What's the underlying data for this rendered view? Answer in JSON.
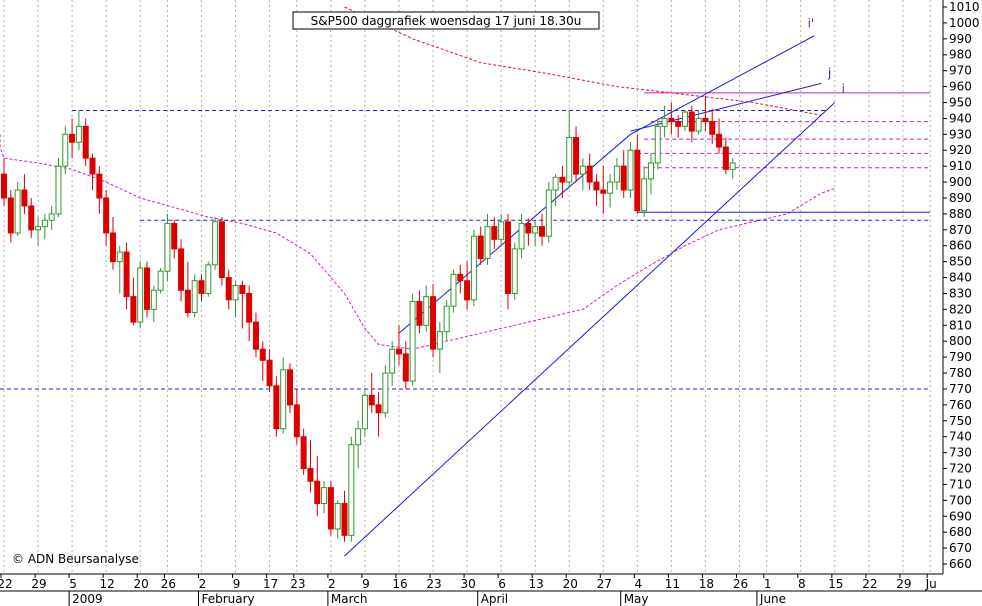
{
  "chart_data": {
    "type": "candlestick",
    "title": "S&P500 daggrafiek woensdag 17 juni 18.30u",
    "credit": "© ADN Beursanalyse",
    "ylim": [
      660,
      1010
    ],
    "yticks": [
      660,
      670,
      680,
      690,
      700,
      710,
      720,
      730,
      740,
      750,
      760,
      770,
      780,
      790,
      800,
      810,
      820,
      830,
      840,
      850,
      860,
      870,
      880,
      890,
      900,
      910,
      920,
      930,
      940,
      950,
      960,
      970,
      980,
      990,
      1000,
      1010
    ],
    "x_day_labels": [
      {
        "label": "22",
        "i": 0
      },
      {
        "label": "29",
        "i": 5
      },
      {
        "label": "5",
        "i": 10
      },
      {
        "label": "12",
        "i": 15
      },
      {
        "label": "20",
        "i": 20
      },
      {
        "label": "26",
        "i": 24
      },
      {
        "label": "2",
        "i": 29
      },
      {
        "label": "9",
        "i": 34
      },
      {
        "label": "17",
        "i": 39
      },
      {
        "label": "23",
        "i": 43
      },
      {
        "label": "2",
        "i": 48
      },
      {
        "label": "9",
        "i": 53
      },
      {
        "label": "16",
        "i": 58
      },
      {
        "label": "23",
        "i": 63
      },
      {
        "label": "30",
        "i": 68
      },
      {
        "label": "6",
        "i": 73
      },
      {
        "label": "13",
        "i": 78
      },
      {
        "label": "20",
        "i": 83
      },
      {
        "label": "27",
        "i": 88
      },
      {
        "label": "4",
        "i": 93
      },
      {
        "label": "11",
        "i": 98
      },
      {
        "label": "18",
        "i": 103
      },
      {
        "label": "26",
        "i": 108
      },
      {
        "label": "1",
        "i": 112
      },
      {
        "label": "8",
        "i": 117
      },
      {
        "label": "15",
        "i": 122
      },
      {
        "label": "22",
        "i": 127
      },
      {
        "label": "29",
        "i": 132
      },
      {
        "label": "Ju",
        "i": 136
      }
    ],
    "x_month_labels": [
      {
        "label": "2009",
        "i": 10
      },
      {
        "label": "February",
        "i": 29
      },
      {
        "label": "March",
        "i": 48
      },
      {
        "label": "April",
        "i": 70
      },
      {
        "label": "May",
        "i": 91
      },
      {
        "label": "June",
        "i": 111
      }
    ],
    "colors": {
      "up": "#2e9a2e",
      "down": "#dd0000",
      "grid": "#b0b0b0",
      "trend": "#1c1cd6",
      "hline": "#2323b8",
      "ma_long": "#cc2222",
      "ma_short": "#d01ad0",
      "resist": "#d01ad0",
      "ann_i": "#7a1aa6",
      "ann_j": "#1c1cd6"
    },
    "ohlc": [
      [
        905,
        915,
        885,
        890
      ],
      [
        890,
        895,
        862,
        868
      ],
      [
        868,
        900,
        866,
        895
      ],
      [
        895,
        905,
        880,
        885
      ],
      [
        885,
        890,
        865,
        870
      ],
      [
        870,
        878,
        860,
        872
      ],
      [
        872,
        880,
        864,
        876
      ],
      [
        876,
        885,
        870,
        880
      ],
      [
        880,
        915,
        878,
        910
      ],
      [
        910,
        935,
        905,
        930
      ],
      [
        930,
        940,
        915,
        925
      ],
      [
        925,
        945,
        920,
        935
      ],
      [
        935,
        940,
        910,
        915
      ],
      [
        915,
        918,
        895,
        905
      ],
      [
        905,
        910,
        880,
        890
      ],
      [
        890,
        895,
        860,
        868
      ],
      [
        868,
        878,
        845,
        850
      ],
      [
        850,
        860,
        830,
        856
      ],
      [
        856,
        862,
        820,
        828
      ],
      [
        828,
        840,
        810,
        812
      ],
      [
        812,
        850,
        808,
        846
      ],
      [
        846,
        850,
        815,
        820
      ],
      [
        820,
        835,
        812,
        832
      ],
      [
        832,
        846,
        830,
        844
      ],
      [
        844,
        880,
        838,
        874
      ],
      [
        874,
        876,
        852,
        858
      ],
      [
        858,
        864,
        825,
        832
      ],
      [
        832,
        850,
        815,
        818
      ],
      [
        818,
        842,
        815,
        838
      ],
      [
        838,
        842,
        825,
        830
      ],
      [
        830,
        850,
        828,
        848
      ],
      [
        848,
        878,
        845,
        875
      ],
      [
        875,
        878,
        835,
        840
      ],
      [
        840,
        845,
        820,
        826
      ],
      [
        826,
        838,
        815,
        835
      ],
      [
        835,
        838,
        808,
        830
      ],
      [
        830,
        835,
        800,
        812
      ],
      [
        812,
        818,
        790,
        795
      ],
      [
        795,
        800,
        775,
        788
      ],
      [
        788,
        795,
        768,
        772
      ],
      [
        772,
        778,
        740,
        745
      ],
      [
        745,
        790,
        742,
        782
      ],
      [
        782,
        786,
        755,
        760
      ],
      [
        760,
        770,
        735,
        740
      ],
      [
        740,
        745,
        716,
        720
      ],
      [
        720,
        738,
        705,
        712
      ],
      [
        712,
        728,
        690,
        698
      ],
      [
        698,
        712,
        692,
        708
      ],
      [
        708,
        712,
        678,
        682
      ],
      [
        682,
        700,
        676,
        698
      ],
      [
        698,
        706,
        674,
        678
      ],
      [
        678,
        740,
        674,
        735
      ],
      [
        735,
        750,
        720,
        745
      ],
      [
        745,
        770,
        740,
        766
      ],
      [
        766,
        780,
        755,
        760
      ],
      [
        760,
        768,
        740,
        755
      ],
      [
        755,
        785,
        752,
        780
      ],
      [
        780,
        800,
        772,
        795
      ],
      [
        795,
        810,
        785,
        792
      ],
      [
        792,
        800,
        770,
        775
      ],
      [
        775,
        830,
        772,
        825
      ],
      [
        825,
        832,
        805,
        810
      ],
      [
        810,
        835,
        806,
        828
      ],
      [
        828,
        836,
        790,
        795
      ],
      [
        795,
        812,
        780,
        806
      ],
      [
        806,
        826,
        800,
        822
      ],
      [
        822,
        845,
        818,
        842
      ],
      [
        842,
        848,
        830,
        838
      ],
      [
        838,
        850,
        820,
        826
      ],
      [
        826,
        870,
        822,
        866
      ],
      [
        866,
        872,
        848,
        852
      ],
      [
        852,
        880,
        848,
        872
      ],
      [
        872,
        878,
        858,
        864
      ],
      [
        864,
        880,
        860,
        875
      ],
      [
        875,
        880,
        820,
        830
      ],
      [
        830,
        862,
        826,
        858
      ],
      [
        858,
        880,
        852,
        874
      ],
      [
        874,
        877,
        860,
        868
      ],
      [
        868,
        876,
        860,
        872
      ],
      [
        872,
        880,
        860,
        866
      ],
      [
        866,
        900,
        862,
        895
      ],
      [
        895,
        905,
        885,
        903
      ],
      [
        903,
        910,
        890,
        900
      ],
      [
        900,
        945,
        896,
        928
      ],
      [
        928,
        935,
        900,
        905
      ],
      [
        905,
        915,
        895,
        910
      ],
      [
        910,
        918,
        895,
        900
      ],
      [
        900,
        905,
        885,
        895
      ],
      [
        895,
        910,
        880,
        893
      ],
      [
        893,
        905,
        884,
        900
      ],
      [
        900,
        915,
        895,
        910
      ],
      [
        910,
        920,
        890,
        895
      ],
      [
        895,
        925,
        890,
        920
      ],
      [
        920,
        930,
        880,
        882
      ],
      [
        882,
        910,
        878,
        902
      ],
      [
        902,
        918,
        892,
        912
      ],
      [
        912,
        940,
        908,
        935
      ],
      [
        935,
        948,
        928,
        940
      ],
      [
        940,
        950,
        930,
        938
      ],
      [
        938,
        942,
        928,
        935
      ],
      [
        935,
        945,
        932,
        944
      ],
      [
        944,
        948,
        925,
        932
      ],
      [
        932,
        945,
        930,
        940
      ],
      [
        940,
        954,
        932,
        938
      ],
      [
        938,
        946,
        924,
        930
      ],
      [
        930,
        940,
        918,
        922
      ],
      [
        922,
        928,
        905,
        908
      ],
      [
        908,
        915,
        902,
        912
      ]
    ],
    "trendlines": [
      {
        "i1": 50,
        "y1": 665,
        "i2": 122,
        "y2": 950,
        "color": "trend"
      },
      {
        "i1": 58,
        "y1": 805,
        "i2": 92,
        "y2": 930,
        "color": "trend"
      },
      {
        "i1": 92,
        "y1": 930,
        "i2": 119,
        "y2": 992,
        "color": "trend"
      },
      {
        "i1": 92,
        "y1": 932,
        "i2": 120,
        "y2": 962,
        "color": "trend"
      }
    ],
    "hlines": [
      {
        "from": 10,
        "to": 121,
        "y": 945,
        "style": "dash",
        "color": "hline"
      },
      {
        "from": 20,
        "to": 136,
        "y": 876,
        "style": "dash",
        "color": "hline"
      },
      {
        "from": -10,
        "to": 136,
        "y": 770,
        "style": "dash",
        "color": "hline"
      },
      {
        "from": 93,
        "to": 136,
        "y": 881,
        "style": "solid",
        "color": "hline"
      },
      {
        "from": 94,
        "to": 136,
        "y": 956,
        "style": "solid",
        "color": "resist"
      },
      {
        "from": 95,
        "to": 136,
        "y": 938,
        "style": "dash",
        "color": "resist"
      },
      {
        "from": 94,
        "to": 136,
        "y": 927,
        "style": "dash",
        "color": "resist"
      },
      {
        "from": 93,
        "to": 136,
        "y": 918,
        "style": "dash",
        "color": "resist"
      },
      {
        "from": 94,
        "to": 136,
        "y": 909,
        "style": "dash",
        "color": "resist"
      }
    ],
    "ma_long": [
      [
        50,
        1010
      ],
      [
        60,
        990
      ],
      [
        70,
        975
      ],
      [
        80,
        968
      ],
      [
        90,
        960
      ],
      [
        100,
        955
      ],
      [
        110,
        950
      ],
      [
        120,
        942
      ]
    ],
    "ma_short": [
      [
        -10,
        930
      ],
      [
        -5,
        922
      ],
      [
        0,
        915
      ],
      [
        5,
        912
      ],
      [
        10,
        908
      ],
      [
        15,
        900
      ],
      [
        20,
        890
      ],
      [
        25,
        884
      ],
      [
        30,
        878
      ],
      [
        35,
        874
      ],
      [
        40,
        868
      ],
      [
        45,
        855
      ],
      [
        50,
        830
      ],
      [
        53,
        808
      ],
      [
        55,
        798
      ],
      [
        60,
        795
      ],
      [
        65,
        800
      ],
      [
        70,
        805
      ],
      [
        75,
        810
      ],
      [
        80,
        815
      ],
      [
        85,
        820
      ],
      [
        90,
        835
      ],
      [
        95,
        848
      ],
      [
        100,
        860
      ],
      [
        105,
        870
      ],
      [
        110,
        875
      ],
      [
        115,
        880
      ],
      [
        120,
        893
      ],
      [
        122,
        896
      ]
    ],
    "annotations": [
      {
        "text": "i'",
        "i": 118,
        "y": 997,
        "color": "ann_i"
      },
      {
        "text": "j",
        "i": 121,
        "y": 966,
        "color": "ann_j"
      },
      {
        "text": "i",
        "i": 123,
        "y": 956,
        "color": "ann_i"
      }
    ]
  }
}
